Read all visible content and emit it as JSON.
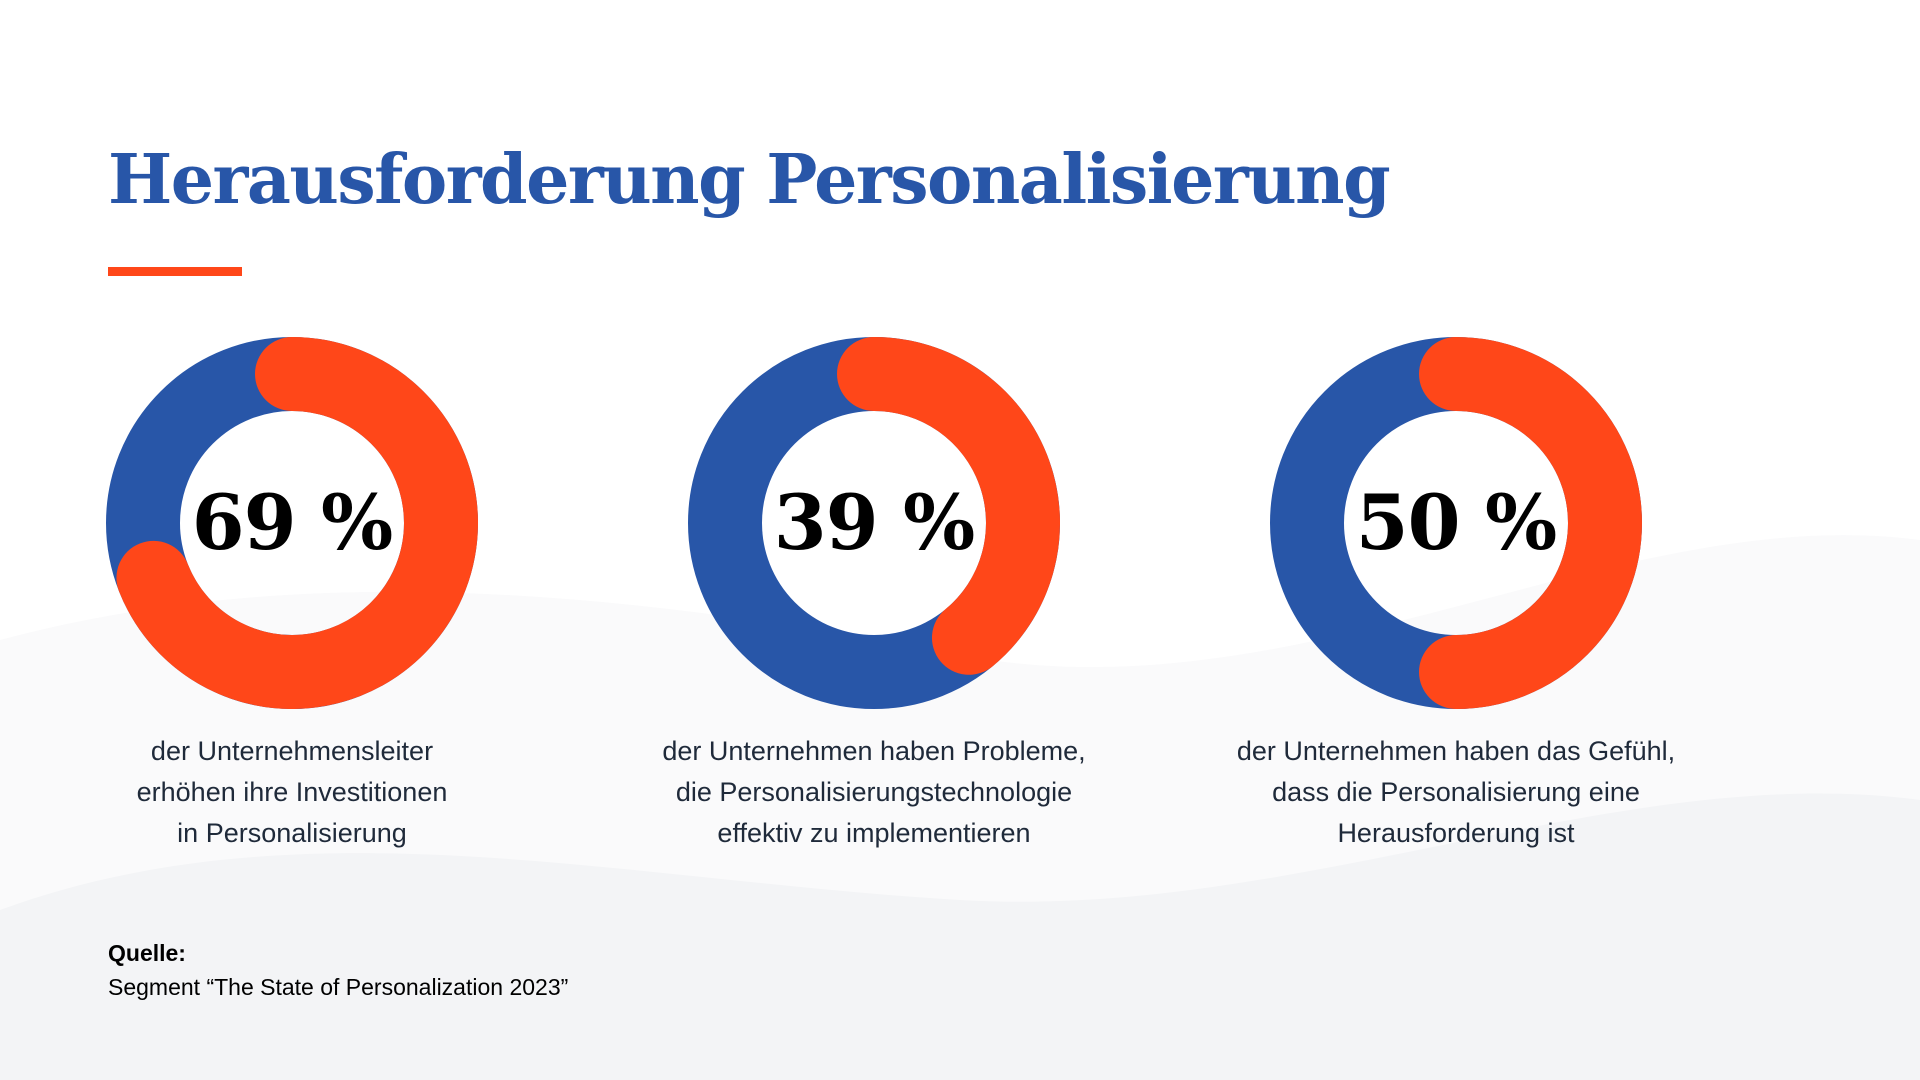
{
  "slide": {
    "title": "Herausforderung Personalisierung",
    "colors": {
      "title": "#2856a8",
      "accent": "#ff4719",
      "donut_base": "#2856a8",
      "donut_highlight": "#ff4719"
    }
  },
  "chart_data": [
    {
      "type": "pie",
      "style": "donut",
      "value_label": "69 %",
      "values": [
        69,
        31
      ],
      "caption": "der Unternehmensleiter\nerhöhen ihre Investitionen\nin Personalisierung"
    },
    {
      "type": "pie",
      "style": "donut",
      "value_label": "39 %",
      "values": [
        39,
        61
      ],
      "caption": "der Unternehmen haben Probleme,\ndie Personalisierungstechnologie\neffektiv zu implementieren"
    },
    {
      "type": "pie",
      "style": "donut",
      "value_label": "50 %",
      "values": [
        50,
        50
      ],
      "caption": "der Unternehmen haben das Gefühl,\ndass die Personalisierung eine\nHerausforderung ist"
    }
  ],
  "source": {
    "label": "Quelle:",
    "text": "Segment “The State of Personalization 2023”"
  }
}
